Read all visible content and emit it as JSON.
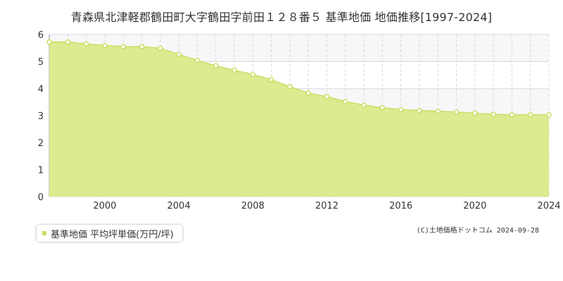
{
  "title": "青森県北津軽郡鶴田町大字鶴田字前田１２８番５ 基準地価 地価推移[1997-2024]",
  "copyright": "(C)土地価格ドットコム 2024-09-28",
  "colors": {
    "fill": "#dbeb8f",
    "line": "#c8df64",
    "marker_fill": "#ffffff",
    "band": "#f7f7fa",
    "grid": "#d9d9d9",
    "axis_text": "#333333"
  },
  "chart_data": {
    "type": "area",
    "title": "青森県北津軽郡鶴田町大字鶴田字前田１２８番５ 基準地価 地価推移[1997-2024]",
    "xlabel": "",
    "ylabel": "",
    "xlim": [
      1997,
      2024
    ],
    "ylim": [
      0,
      6
    ],
    "x_ticks": [
      2000,
      2004,
      2008,
      2012,
      2016,
      2020,
      2024
    ],
    "y_ticks": [
      0,
      1,
      2,
      3,
      4,
      5,
      6
    ],
    "grid": true,
    "legend_position": "bottom-left",
    "series": [
      {
        "name": "基準地価 平均坪単価(万円/坪)",
        "x": [
          1997,
          1998,
          1999,
          2000,
          2001,
          2002,
          2003,
          2004,
          2005,
          2006,
          2007,
          2008,
          2009,
          2010,
          2011,
          2012,
          2013,
          2014,
          2015,
          2016,
          2017,
          2018,
          2019,
          2020,
          2021,
          2022,
          2023,
          2024
        ],
        "values": [
          5.72,
          5.72,
          5.65,
          5.59,
          5.55,
          5.55,
          5.49,
          5.26,
          5.04,
          4.84,
          4.68,
          4.52,
          4.33,
          4.07,
          3.83,
          3.7,
          3.52,
          3.39,
          3.29,
          3.22,
          3.19,
          3.16,
          3.13,
          3.09,
          3.05,
          3.03,
          3.03,
          3.03
        ]
      }
    ]
  }
}
